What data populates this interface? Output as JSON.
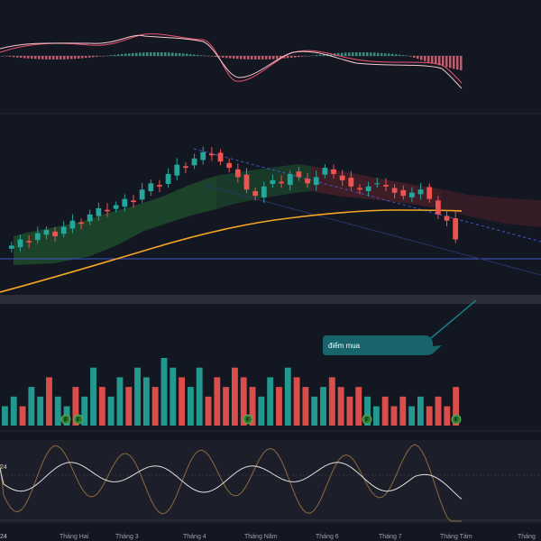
{
  "chart_data": {
    "type": "candlestick",
    "x_axis_labels": [
      "24",
      "Tháng Hai",
      "Tháng 3",
      "Tháng 4",
      "Tháng Năm",
      "Tháng 6",
      "Tháng 7",
      "Tháng Tám",
      "Tháng"
    ],
    "annotation": "điểm mua",
    "event_markers": [
      "F",
      "F",
      "F",
      "F",
      "F"
    ],
    "colors": {
      "background": "#131722",
      "up": "#26a69a",
      "down": "#ef5350",
      "ma_line": "#f5a623",
      "cloud_bull": "#1e4a2c",
      "cloud_bear": "#4a1f29",
      "callout": "#17656b",
      "hline": "#3e58c9",
      "oscillator_fast": "#e0e0e0",
      "oscillator_slow": "#8b6a3c"
    },
    "price_series": {
      "close": [
        5.0,
        5.2,
        5.1,
        5.4,
        5.5,
        5.3,
        5.6,
        5.8,
        5.7,
        6.0,
        6.2,
        6.1,
        6.3,
        6.5,
        6.4,
        6.8,
        7.0,
        6.9,
        7.3,
        7.6,
        7.5,
        7.8,
        8.0,
        7.9,
        7.7,
        7.5,
        7.2,
        6.8,
        6.6,
        6.9,
        7.1,
        7.0,
        7.3,
        7.2,
        7.0,
        7.2,
        7.5,
        7.3,
        7.1,
        6.9,
        6.8,
        6.9,
        7.0,
        6.9,
        6.7,
        6.6,
        6.7,
        6.8,
        6.5,
        6.0,
        5.8,
        5.2
      ]
    },
    "volume": [
      2,
      3,
      2,
      4,
      3,
      5,
      3,
      2,
      4,
      3,
      6,
      4,
      3,
      5,
      4,
      6,
      5,
      4,
      7,
      6,
      5,
      4,
      6,
      3,
      5,
      4,
      6,
      5,
      4,
      3,
      5,
      4,
      6,
      5,
      4,
      3,
      4,
      5,
      4,
      3,
      4,
      3,
      2,
      3,
      2,
      3,
      2,
      3,
      2,
      3,
      2,
      4
    ]
  }
}
